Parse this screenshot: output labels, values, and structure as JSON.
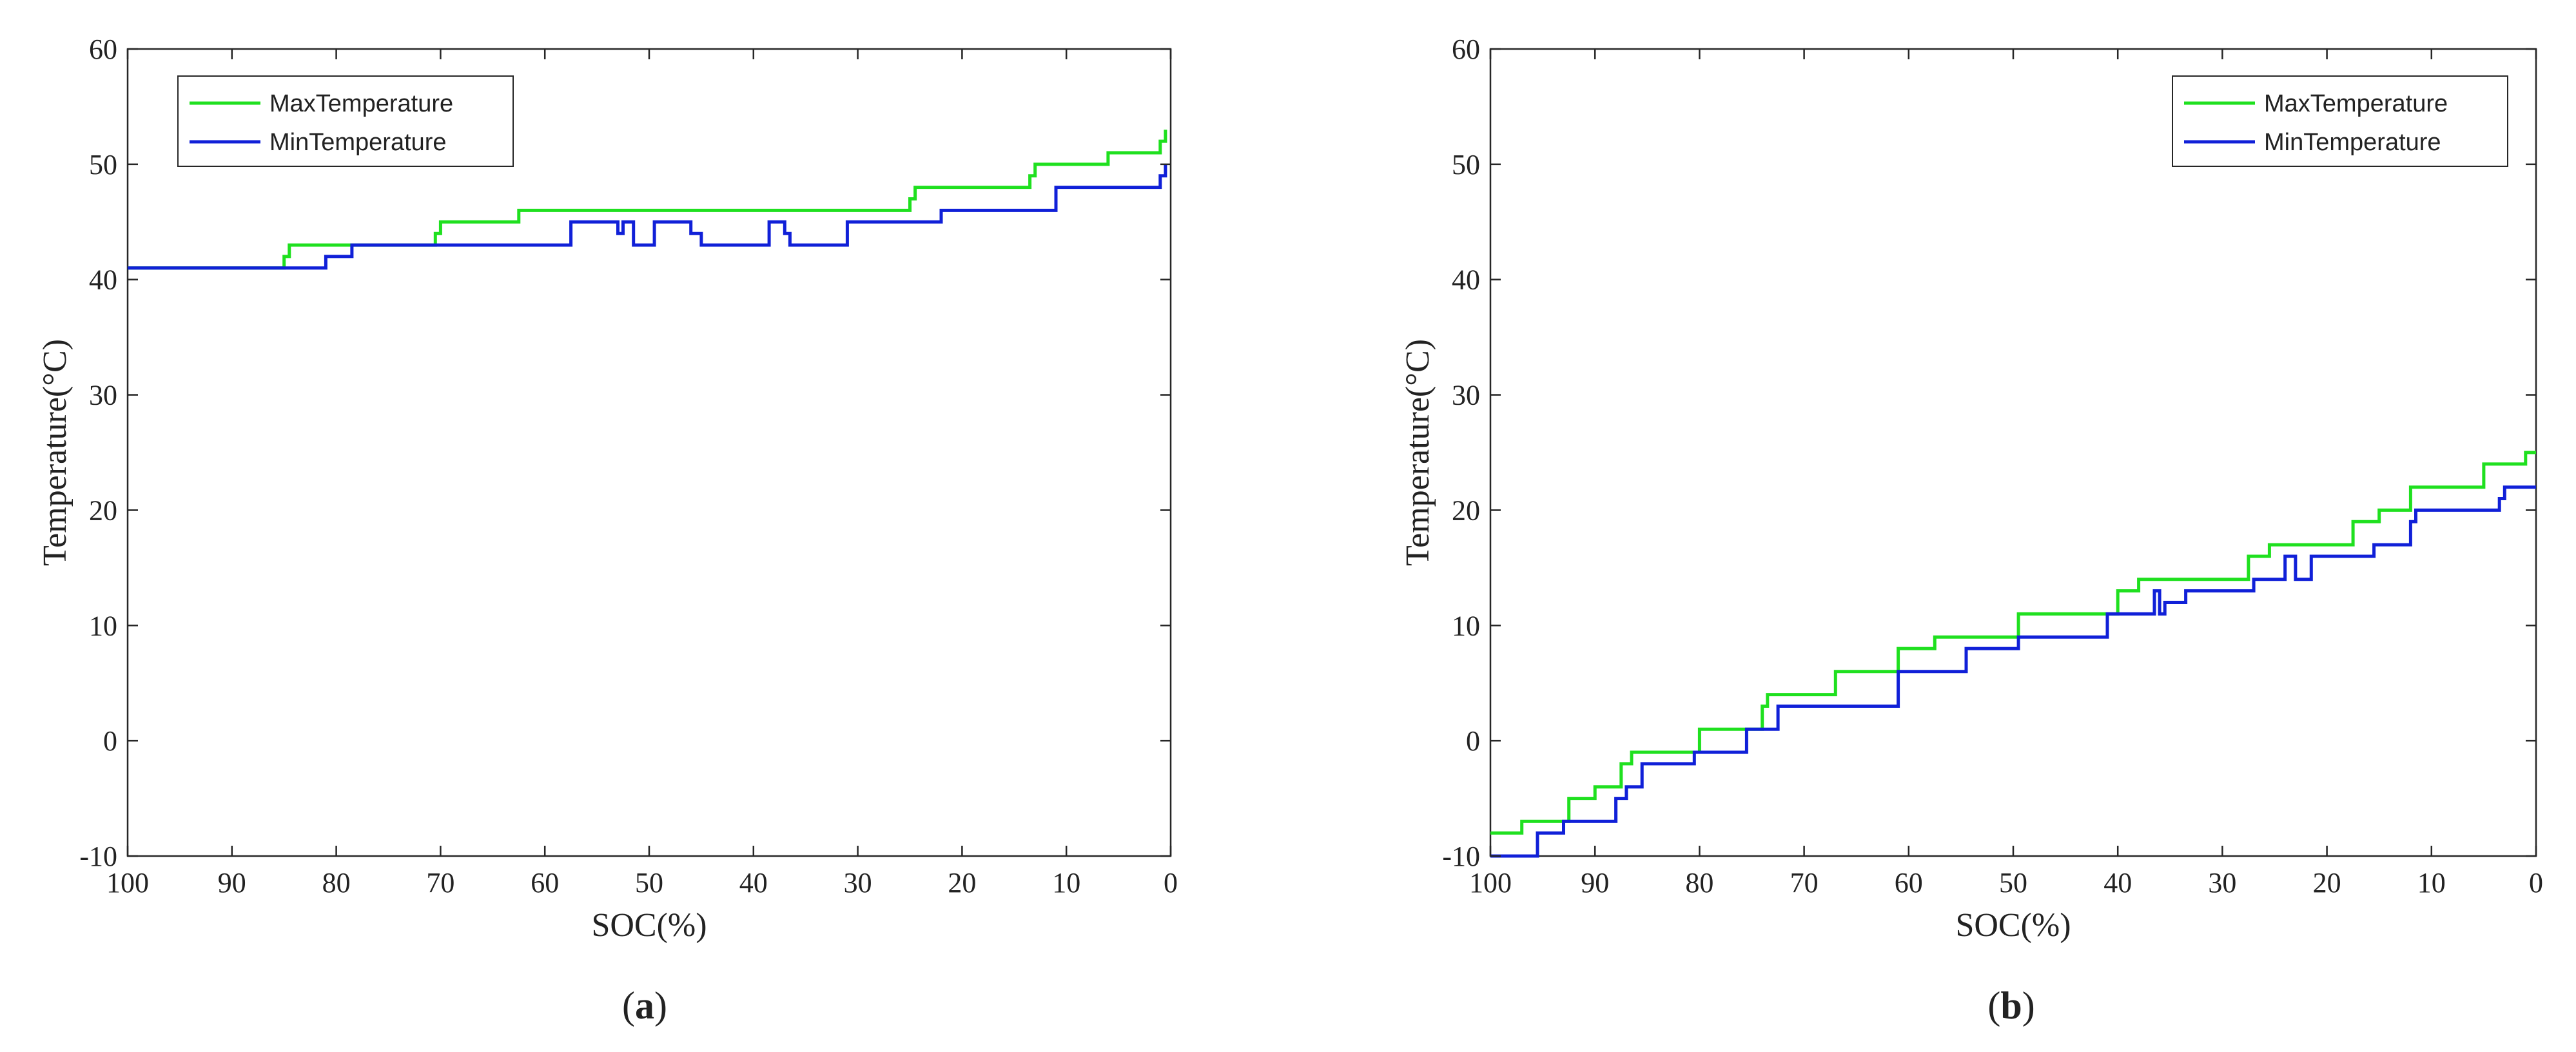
{
  "chart_data": [
    {
      "id": "a",
      "type": "line",
      "caption": {
        "open": "(",
        "letter": "a",
        "close": ")"
      },
      "title": "",
      "xlabel": "SOC(%)",
      "ylabel": "Temperature(°C)",
      "xlim": [
        100,
        0
      ],
      "ylim": [
        -10,
        60
      ],
      "x_reversed": true,
      "xticks": [
        100,
        90,
        80,
        70,
        60,
        50,
        40,
        30,
        20,
        10,
        0
      ],
      "yticks": [
        -10,
        0,
        10,
        20,
        30,
        40,
        50,
        60
      ],
      "grid": false,
      "legend_position": "top-left",
      "series": [
        {
          "name": "MaxTemperature",
          "color": "#1fe01f",
          "x": [
            100,
            85,
            85,
            84.5,
            84.5,
            70.5,
            70.5,
            70,
            70,
            62.5,
            62.5,
            25,
            25,
            24.5,
            24.5,
            13.5,
            13.5,
            13,
            13,
            6,
            6,
            1,
            1,
            0.5,
            0.5
          ],
          "y": [
            41,
            41,
            42,
            42,
            43,
            43,
            44,
            44,
            45,
            45,
            46,
            46,
            47,
            47,
            48,
            48,
            49,
            49,
            50,
            50,
            51,
            51,
            52,
            52,
            53
          ]
        },
        {
          "name": "MinTemperature",
          "color": "#1020d8",
          "x": [
            100,
            81,
            81,
            79.5,
            79.5,
            78.5,
            78.5,
            57.5,
            57.5,
            53,
            53,
            52.5,
            52.5,
            51.5,
            51.5,
            49.5,
            49.5,
            46,
            46,
            45,
            45,
            38.5,
            38.5,
            37,
            37,
            36.5,
            36.5,
            31,
            31,
            22,
            22,
            11,
            11,
            1,
            1,
            0.5,
            0.5
          ],
          "y": [
            41,
            41,
            42,
            42,
            42,
            42,
            43,
            43,
            45,
            45,
            44,
            44,
            45,
            45,
            43,
            43,
            45,
            45,
            44,
            44,
            43,
            43,
            45,
            45,
            44,
            44,
            43,
            43,
            45,
            45,
            46,
            46,
            48,
            48,
            49,
            49,
            50
          ]
        }
      ]
    },
    {
      "id": "b",
      "type": "line",
      "caption": {
        "open": "(",
        "letter": "b",
        "close": ")"
      },
      "title": "",
      "xlabel": "SOC(%)",
      "ylabel": "Temperature(°C)",
      "xlim": [
        100,
        0
      ],
      "ylim": [
        -10,
        60
      ],
      "x_reversed": true,
      "xticks": [
        100,
        90,
        80,
        70,
        60,
        50,
        40,
        30,
        20,
        10,
        0
      ],
      "yticks": [
        -10,
        0,
        10,
        20,
        30,
        40,
        50,
        60
      ],
      "grid": false,
      "legend_position": "top-right",
      "series": [
        {
          "name": "MaxTemperature",
          "color": "#1fe01f",
          "x": [
            100,
            97,
            97,
            92.5,
            92.5,
            90,
            90,
            87.5,
            87.5,
            86.5,
            86.5,
            80,
            80,
            74,
            74,
            73.5,
            73.5,
            67,
            67,
            61,
            61,
            57.5,
            57.5,
            49.5,
            49.5,
            40,
            40,
            38,
            38,
            27.5,
            27.5,
            25.5,
            25.5,
            17.5,
            17.5,
            15,
            15,
            12,
            12,
            5,
            5,
            1,
            1,
            0
          ],
          "y": [
            -8,
            -8,
            -7,
            -7,
            -5,
            -5,
            -4,
            -4,
            -2,
            -2,
            -1,
            -1,
            1,
            1,
            3,
            3,
            4,
            4,
            6,
            6,
            8,
            8,
            9,
            9,
            11,
            11,
            13,
            13,
            14,
            14,
            16,
            16,
            17,
            17,
            19,
            19,
            20,
            20,
            22,
            22,
            24,
            24,
            25,
            25
          ]
        },
        {
          "name": "MinTemperature",
          "color": "#1020d8",
          "x": [
            100,
            95.5,
            95.5,
            93,
            93,
            88,
            88,
            87,
            87,
            85.5,
            85.5,
            84.5,
            84.5,
            80.5,
            80.5,
            75.5,
            75.5,
            72.5,
            72.5,
            61,
            61,
            54.5,
            54.5,
            49.5,
            49.5,
            41,
            41,
            40.5,
            40.5,
            36.5,
            36.5,
            36,
            36,
            35.5,
            35.5,
            33.5,
            33.5,
            33,
            33,
            27,
            27,
            24,
            24,
            23,
            23,
            21.5,
            21.5,
            15.5,
            15.5,
            12,
            12,
            11.5,
            11.5,
            3.5,
            3.5,
            3,
            3,
            0
          ],
          "y": [
            -10,
            -10,
            -8,
            -8,
            -7,
            -7,
            -5,
            -5,
            -4,
            -4,
            -2,
            -2,
            -2,
            -2,
            -1,
            -1,
            1,
            1,
            3,
            3,
            6,
            6,
            8,
            8,
            9,
            9,
            11,
            11,
            11,
            11,
            13,
            13,
            11,
            11,
            12,
            12,
            13,
            13,
            13,
            13,
            14,
            14,
            16,
            16,
            14,
            14,
            16,
            16,
            17,
            17,
            19,
            19,
            20,
            20,
            21,
            21,
            22,
            22
          ]
        }
      ]
    }
  ]
}
